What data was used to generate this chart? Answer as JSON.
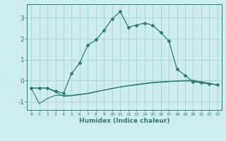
{
  "xlabel": "Humidex (Indice chaleur)",
  "x_values": [
    0,
    1,
    2,
    3,
    4,
    5,
    6,
    7,
    8,
    9,
    10,
    11,
    12,
    13,
    14,
    15,
    16,
    17,
    18,
    19,
    20,
    21,
    22,
    23
  ],
  "line1_y": [
    -0.35,
    -0.35,
    -0.35,
    -0.5,
    -0.6,
    0.35,
    0.85,
    1.7,
    1.95,
    2.4,
    2.95,
    3.3,
    2.55,
    2.65,
    2.75,
    2.65,
    2.3,
    1.9,
    0.55,
    0.25,
    -0.05,
    -0.1,
    -0.15,
    -0.2
  ],
  "line2_y": [
    -0.35,
    -1.1,
    -0.85,
    -0.7,
    -0.7,
    -0.7,
    -0.65,
    -0.6,
    -0.52,
    -0.45,
    -0.38,
    -0.3,
    -0.25,
    -0.2,
    -0.15,
    -0.1,
    -0.08,
    -0.05,
    -0.03,
    -0.02,
    -0.02,
    -0.1,
    -0.15,
    -0.2
  ],
  "line3_y": [
    -0.35,
    -0.35,
    -0.35,
    -0.55,
    -0.75,
    -0.72,
    -0.67,
    -0.62,
    -0.53,
    -0.45,
    -0.37,
    -0.3,
    -0.24,
    -0.18,
    -0.13,
    -0.08,
    -0.05,
    -0.03,
    -0.01,
    0.01,
    0.02,
    -0.05,
    -0.12,
    -0.2
  ],
  "line_color": "#2e7d6e",
  "bg_color": "#ceeeed",
  "grid_color": "#9ecece",
  "axis_color": "#2e7d6e",
  "ylim": [
    -1.4,
    3.65
  ],
  "yticks": [
    -1,
    0,
    1,
    2,
    3
  ],
  "marker": "D",
  "marker_size": 2.5
}
